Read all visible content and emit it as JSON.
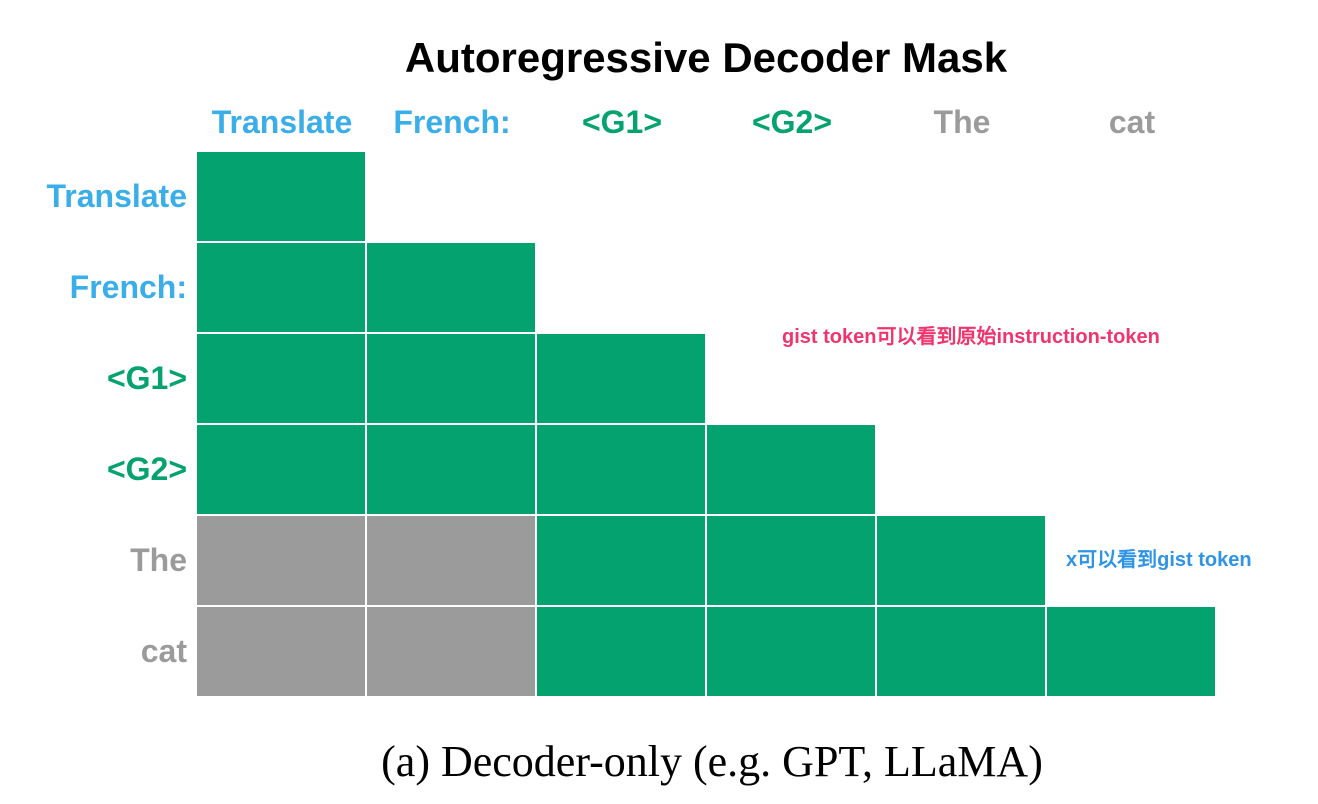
{
  "title": "Autoregressive Decoder Mask",
  "colors": {
    "instruction": "#3aaee8",
    "gist": "#03a26f",
    "text": "#9b9b9b",
    "masked_cell": "#9b9b9b",
    "attend_cell": "#03a26f",
    "note_pink": "#f0346e",
    "note_blue": "#2e94e6"
  },
  "tokens": [
    {
      "text": "Translate",
      "role": "instruction"
    },
    {
      "text": "French:",
      "role": "instruction"
    },
    {
      "text": "<G1>",
      "role": "gist"
    },
    {
      "text": "<G2>",
      "role": "gist"
    },
    {
      "text": "The",
      "role": "text"
    },
    {
      "text": "cat",
      "role": "text"
    }
  ],
  "mask": [
    [
      "attend",
      null,
      null,
      null,
      null,
      null
    ],
    [
      "attend",
      "attend",
      null,
      null,
      null,
      null
    ],
    [
      "attend",
      "attend",
      "attend",
      null,
      null,
      null
    ],
    [
      "attend",
      "attend",
      "attend",
      "attend",
      null,
      null
    ],
    [
      "masked",
      "masked",
      "attend",
      "attend",
      "attend",
      null
    ],
    [
      "masked",
      "masked",
      "attend",
      "attend",
      "attend",
      "attend"
    ]
  ],
  "annotations": {
    "gist_note": "gist token可以看到原始instruction-token",
    "x_note": "x可以看到gist token"
  },
  "caption": "(a) Decoder-only (e.g. GPT, LLaMA)"
}
